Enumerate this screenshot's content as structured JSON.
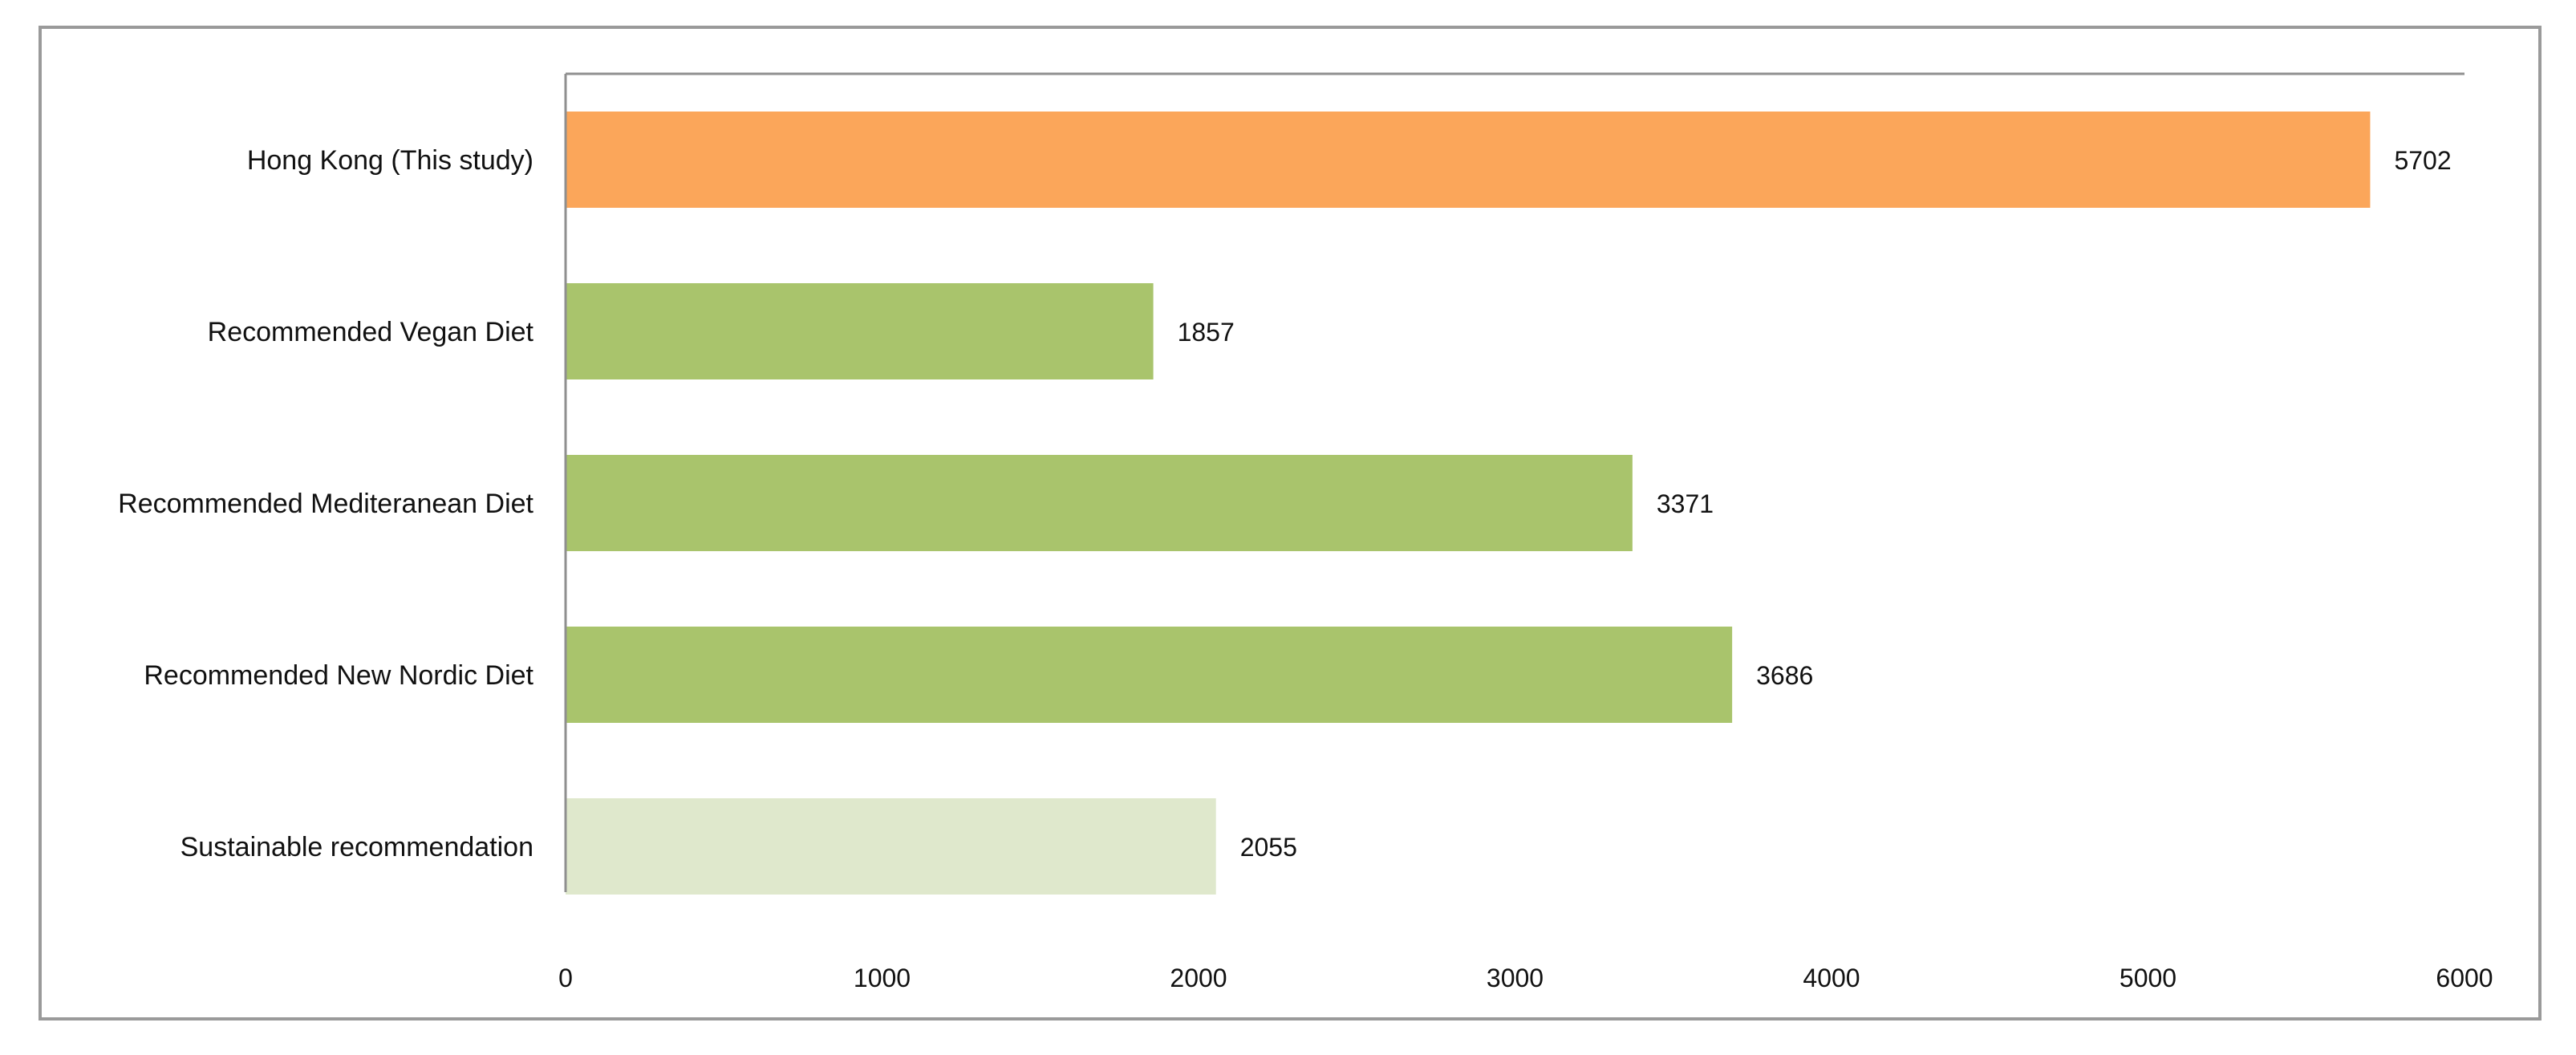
{
  "chart_data": {
    "type": "bar",
    "orientation": "horizontal",
    "categories": [
      "Hong Kong (This study)",
      "Recommended Vegan Diet",
      "Recommended Mediteranean Diet",
      "Recommended New Nordic Diet",
      "Sustainable recommendation"
    ],
    "values": [
      5702,
      1857,
      3371,
      3686,
      2055
    ],
    "bar_colors": [
      "#fba65a",
      "#a9c46c",
      "#a9c46c",
      "#a9c46c",
      "#dfe8cc"
    ],
    "data_labels": [
      "5702",
      "1857",
      "3371",
      "3686",
      "2055"
    ],
    "x_ticks": [
      0,
      1000,
      2000,
      3000,
      4000,
      5000,
      6000
    ],
    "x_tick_labels": [
      "0",
      "1000",
      "2000",
      "3000",
      "4000",
      "5000",
      "6000"
    ],
    "xlim": [
      0,
      6000
    ],
    "title": "",
    "xlabel": "",
    "ylabel": "",
    "grid": false,
    "legend": "none"
  }
}
